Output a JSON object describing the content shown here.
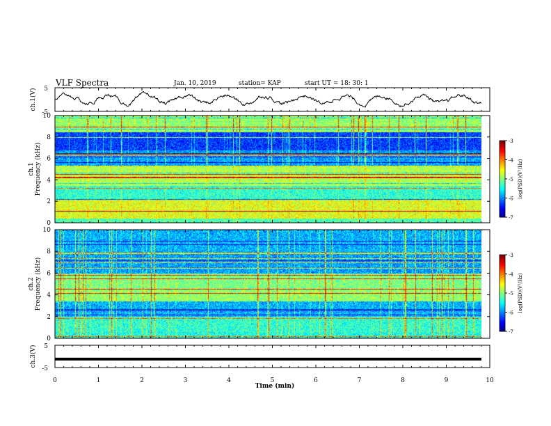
{
  "header": {
    "title": "VLF Spectra",
    "date": "Jan. 10, 2019",
    "station": "station= KAP",
    "start": "start  UT =   18: 30: 1"
  },
  "chart_data": [
    {
      "type": "line",
      "panel": "ch.1(V) waveform",
      "ylabel": "ch.1(V)",
      "ylim": [
        -5,
        5
      ],
      "yticks": [
        "5",
        "-5"
      ],
      "x_range_min": [
        0,
        9.8
      ],
      "description_level": "oscillating trace around 0 V, amplitude ~1.5 V"
    },
    {
      "type": "heatmap",
      "panel": "ch.1 spectrogram",
      "ylabel": "ch.1\nFrequency (kHz)",
      "ylim": [
        0,
        10
      ],
      "yticks": [
        "0",
        "2",
        "4",
        "6",
        "8",
        "10"
      ],
      "colorbar": {
        "label": "log(PSD)(V²/Hz)",
        "ticks": [
          "-3",
          "-4",
          "-5",
          "-6",
          "-7"
        ],
        "range": [
          -7,
          -3
        ]
      }
    },
    {
      "type": "heatmap",
      "panel": "ch.2 spectrogram",
      "ylabel": "ch.2\nFrequency (kHz)",
      "ylim": [
        0,
        10
      ],
      "yticks": [
        "0",
        "2",
        "4",
        "6",
        "8",
        "10"
      ],
      "colorbar": {
        "label": "log(PSD)(V²/Hz)",
        "ticks": [
          "-3",
          "-4",
          "-5",
          "-6",
          "-7"
        ],
        "range": [
          -7,
          -3
        ]
      }
    },
    {
      "type": "line",
      "panel": "ch.3(V) waveform",
      "ylabel": "ch.3(V)",
      "ylim": [
        -5,
        5
      ],
      "yticks": [
        "5",
        "-5"
      ],
      "value": -1.2
    }
  ],
  "xaxis": {
    "label": "Time  (min)",
    "ticks": [
      "0",
      "1",
      "2",
      "3",
      "4",
      "5",
      "6",
      "7",
      "8",
      "9",
      "10"
    ],
    "range": [
      0,
      10
    ],
    "data_end": 9.8
  }
}
